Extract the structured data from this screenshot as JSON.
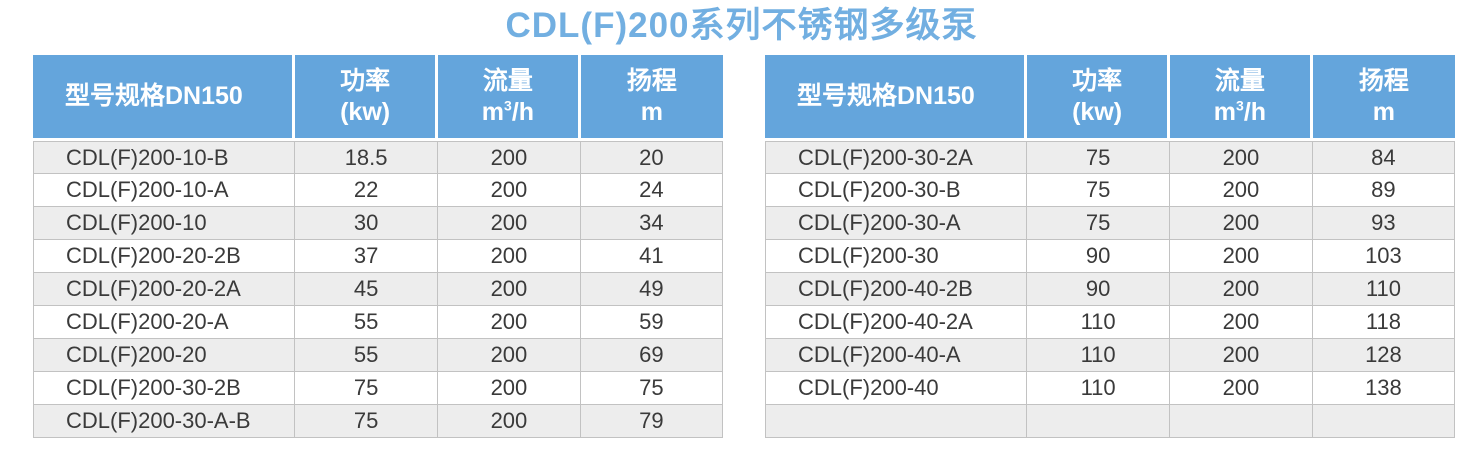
{
  "page_title": "CDL(F)200系列不锈钢多级泵",
  "colors": {
    "title_color": "#72afe1",
    "header_bg": "#64a5dc",
    "header_text": "#ffffff",
    "row_alt_bg": "#ededed",
    "row_bg": "#ffffff",
    "body_text": "#3a3a3a",
    "grid_line": "#c2c2c2"
  },
  "table_header": {
    "model": "型号规格DN150",
    "power_line1": "功率",
    "power_line2": "(kw)",
    "flow_line1": "流量",
    "flow_unit_base": "m",
    "flow_unit_sup": "3",
    "flow_unit_rest": "/h",
    "head_line1": "扬程",
    "head_line2": "m"
  },
  "left_table": {
    "rows": [
      {
        "model": "CDL(F)200-10-B",
        "power_kw": "18.5",
        "flow_m3h": "200",
        "head_m": "20"
      },
      {
        "model": "CDL(F)200-10-A",
        "power_kw": "22",
        "flow_m3h": "200",
        "head_m": "24"
      },
      {
        "model": "CDL(F)200-10",
        "power_kw": "30",
        "flow_m3h": "200",
        "head_m": "34"
      },
      {
        "model": "CDL(F)200-20-2B",
        "power_kw": "37",
        "flow_m3h": "200",
        "head_m": "41"
      },
      {
        "model": "CDL(F)200-20-2A",
        "power_kw": "45",
        "flow_m3h": "200",
        "head_m": "49"
      },
      {
        "model": "CDL(F)200-20-A",
        "power_kw": "55",
        "flow_m3h": "200",
        "head_m": "59"
      },
      {
        "model": "CDL(F)200-20",
        "power_kw": "55",
        "flow_m3h": "200",
        "head_m": "69"
      },
      {
        "model": "CDL(F)200-30-2B",
        "power_kw": "75",
        "flow_m3h": "200",
        "head_m": "75"
      },
      {
        "model": "CDL(F)200-30-A-B",
        "power_kw": "75",
        "flow_m3h": "200",
        "head_m": "79"
      }
    ]
  },
  "right_table": {
    "rows": [
      {
        "model": "CDL(F)200-30-2A",
        "power_kw": "75",
        "flow_m3h": "200",
        "head_m": "84"
      },
      {
        "model": "CDL(F)200-30-B",
        "power_kw": "75",
        "flow_m3h": "200",
        "head_m": "89"
      },
      {
        "model": "CDL(F)200-30-A",
        "power_kw": "75",
        "flow_m3h": "200",
        "head_m": "93"
      },
      {
        "model": "CDL(F)200-30",
        "power_kw": "90",
        "flow_m3h": "200",
        "head_m": "103"
      },
      {
        "model": "CDL(F)200-40-2B",
        "power_kw": "90",
        "flow_m3h": "200",
        "head_m": "110"
      },
      {
        "model": "CDL(F)200-40-2A",
        "power_kw": "110",
        "flow_m3h": "200",
        "head_m": "118"
      },
      {
        "model": "CDL(F)200-40-A",
        "power_kw": "110",
        "flow_m3h": "200",
        "head_m": "128"
      },
      {
        "model": "CDL(F)200-40",
        "power_kw": "110",
        "flow_m3h": "200",
        "head_m": "138"
      },
      {
        "model": "",
        "power_kw": "",
        "flow_m3h": "",
        "head_m": ""
      }
    ]
  }
}
